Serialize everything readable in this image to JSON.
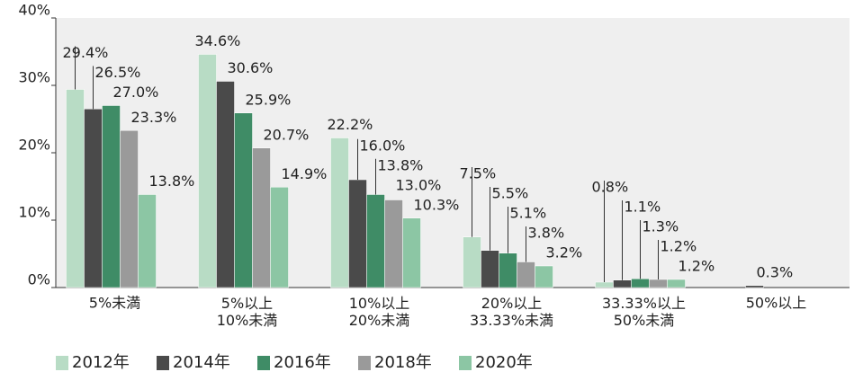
{
  "chart_data": {
    "type": "bar",
    "categories": [
      "5%未満",
      "5%以上\n10%未満",
      "10%以上\n20%未満",
      "20%以上\n33.33%未満",
      "33.33%以上\n50%未満",
      "50%以上"
    ],
    "series": [
      {
        "name": "2012年",
        "color": "#b8dcc5",
        "values": [
          29.4,
          34.6,
          22.2,
          7.5,
          0.8,
          null
        ],
        "value_labels": [
          "29.4%",
          "34.6%",
          "22.2%",
          "7.5%",
          "0.8%",
          null
        ]
      },
      {
        "name": "2014年",
        "color": "#4a4a4a",
        "values": [
          26.5,
          30.6,
          16.0,
          5.5,
          1.1,
          0.3
        ],
        "value_labels": [
          "26.5%",
          "30.6%",
          "16.0%",
          "5.5%",
          "1.1%",
          "0.3%"
        ]
      },
      {
        "name": "2016年",
        "color": "#3f8c66",
        "values": [
          27.0,
          25.9,
          13.8,
          5.1,
          1.3,
          null
        ],
        "value_labels": [
          "27.0%",
          "25.9%",
          "13.8%",
          "5.1%",
          "1.3%",
          null
        ]
      },
      {
        "name": "2018年",
        "color": "#9a9a9a",
        "values": [
          23.3,
          20.7,
          13.0,
          3.8,
          1.2,
          null
        ],
        "value_labels": [
          "23.3%",
          "20.7%",
          "13.0%",
          "3.8%",
          "1.2%",
          null
        ]
      },
      {
        "name": "2020年",
        "color": "#8cc6a4",
        "values": [
          13.8,
          14.9,
          10.3,
          3.2,
          1.2,
          null
        ],
        "value_labels": [
          "13.8%",
          "14.9%",
          "10.3%",
          "3.2%",
          "1.2%",
          null
        ]
      }
    ],
    "ylim": [
      0,
      40
    ],
    "yticks": [
      {
        "value": 0,
        "label": "0%"
      },
      {
        "value": 10,
        "label": "10%"
      },
      {
        "value": 20,
        "label": "20%"
      },
      {
        "value": 30,
        "label": "30%"
      },
      {
        "value": 40,
        "label": "40%"
      }
    ],
    "grid": false,
    "legend": "bottom"
  }
}
